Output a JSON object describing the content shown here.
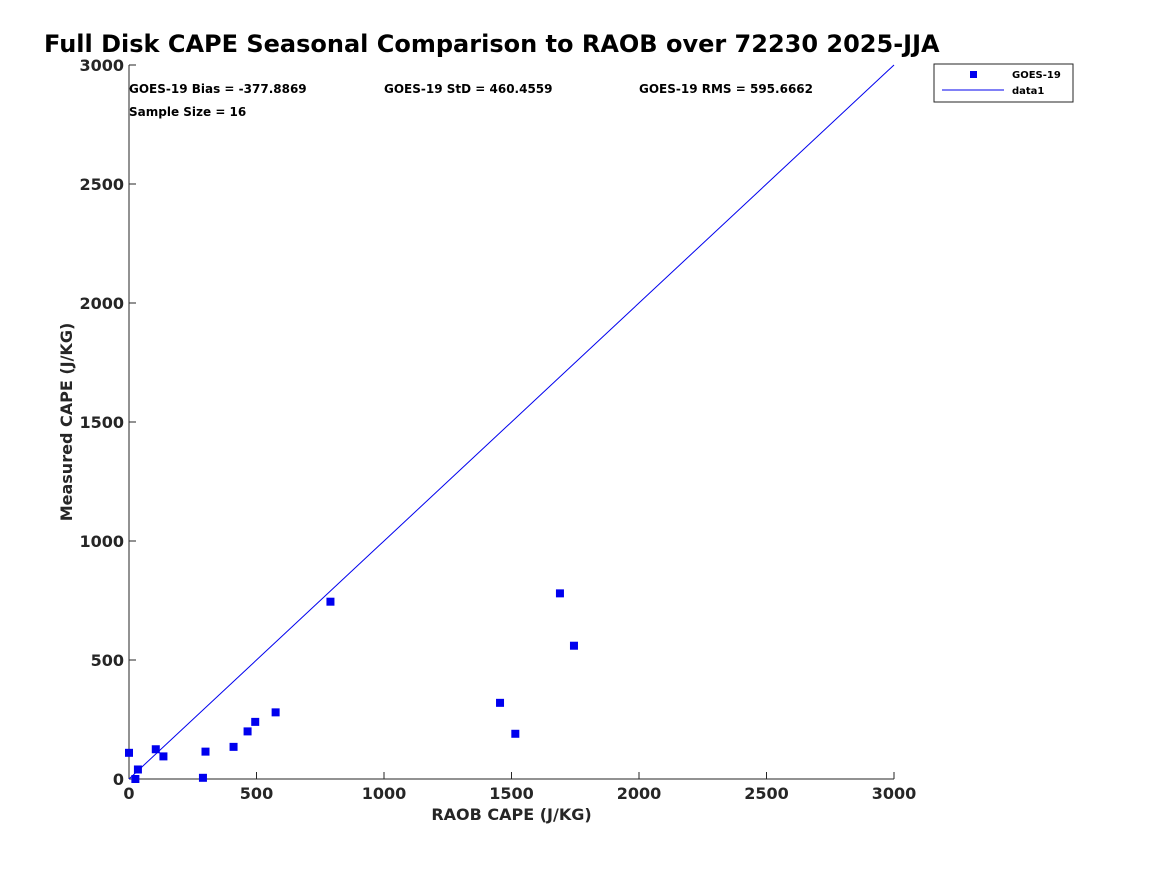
{
  "chart_data": {
    "type": "scatter",
    "title": "Full Disk CAPE Seasonal Comparison to RAOB over 72230 2025-JJA",
    "xlabel": "RAOB CAPE (J/KG)",
    "ylabel": "Measured CAPE (J/KG)",
    "xlim": [
      0,
      3000
    ],
    "ylim": [
      0,
      3000
    ],
    "xticks": [
      0,
      500,
      1000,
      1500,
      2000,
      2500,
      3000
    ],
    "yticks": [
      0,
      500,
      1000,
      1500,
      2000,
      2500,
      3000
    ],
    "xtick_labels": [
      "0",
      "500",
      "1000",
      "1500",
      "2000",
      "2500",
      "3000"
    ],
    "ytick_labels": [
      "0",
      "500",
      "1000",
      "1500",
      "2000",
      "2500",
      "3000"
    ],
    "grid": false,
    "legend_position": "top-right",
    "series": [
      {
        "name": "GOES-19",
        "kind": "scatter",
        "marker": "square",
        "color": "#0000ee",
        "x": [
          0,
          25,
          35,
          105,
          135,
          290,
          300,
          410,
          465,
          495,
          575,
          790,
          1455,
          1515,
          1690,
          1745
        ],
        "y": [
          110,
          0,
          40,
          125,
          95,
          5,
          115,
          135,
          200,
          240,
          280,
          745,
          320,
          190,
          780,
          560
        ]
      },
      {
        "name": "data1",
        "kind": "line",
        "color": "#0000ee",
        "x": [
          0,
          3000
        ],
        "y": [
          0,
          3000
        ]
      }
    ],
    "stats": {
      "bias": "GOES-19 Bias = -377.8869",
      "std": "GOES-19 StD = 460.4559",
      "rms": "GOES-19 RMS = 595.6662",
      "sample_size": "Sample Size = 16"
    }
  }
}
